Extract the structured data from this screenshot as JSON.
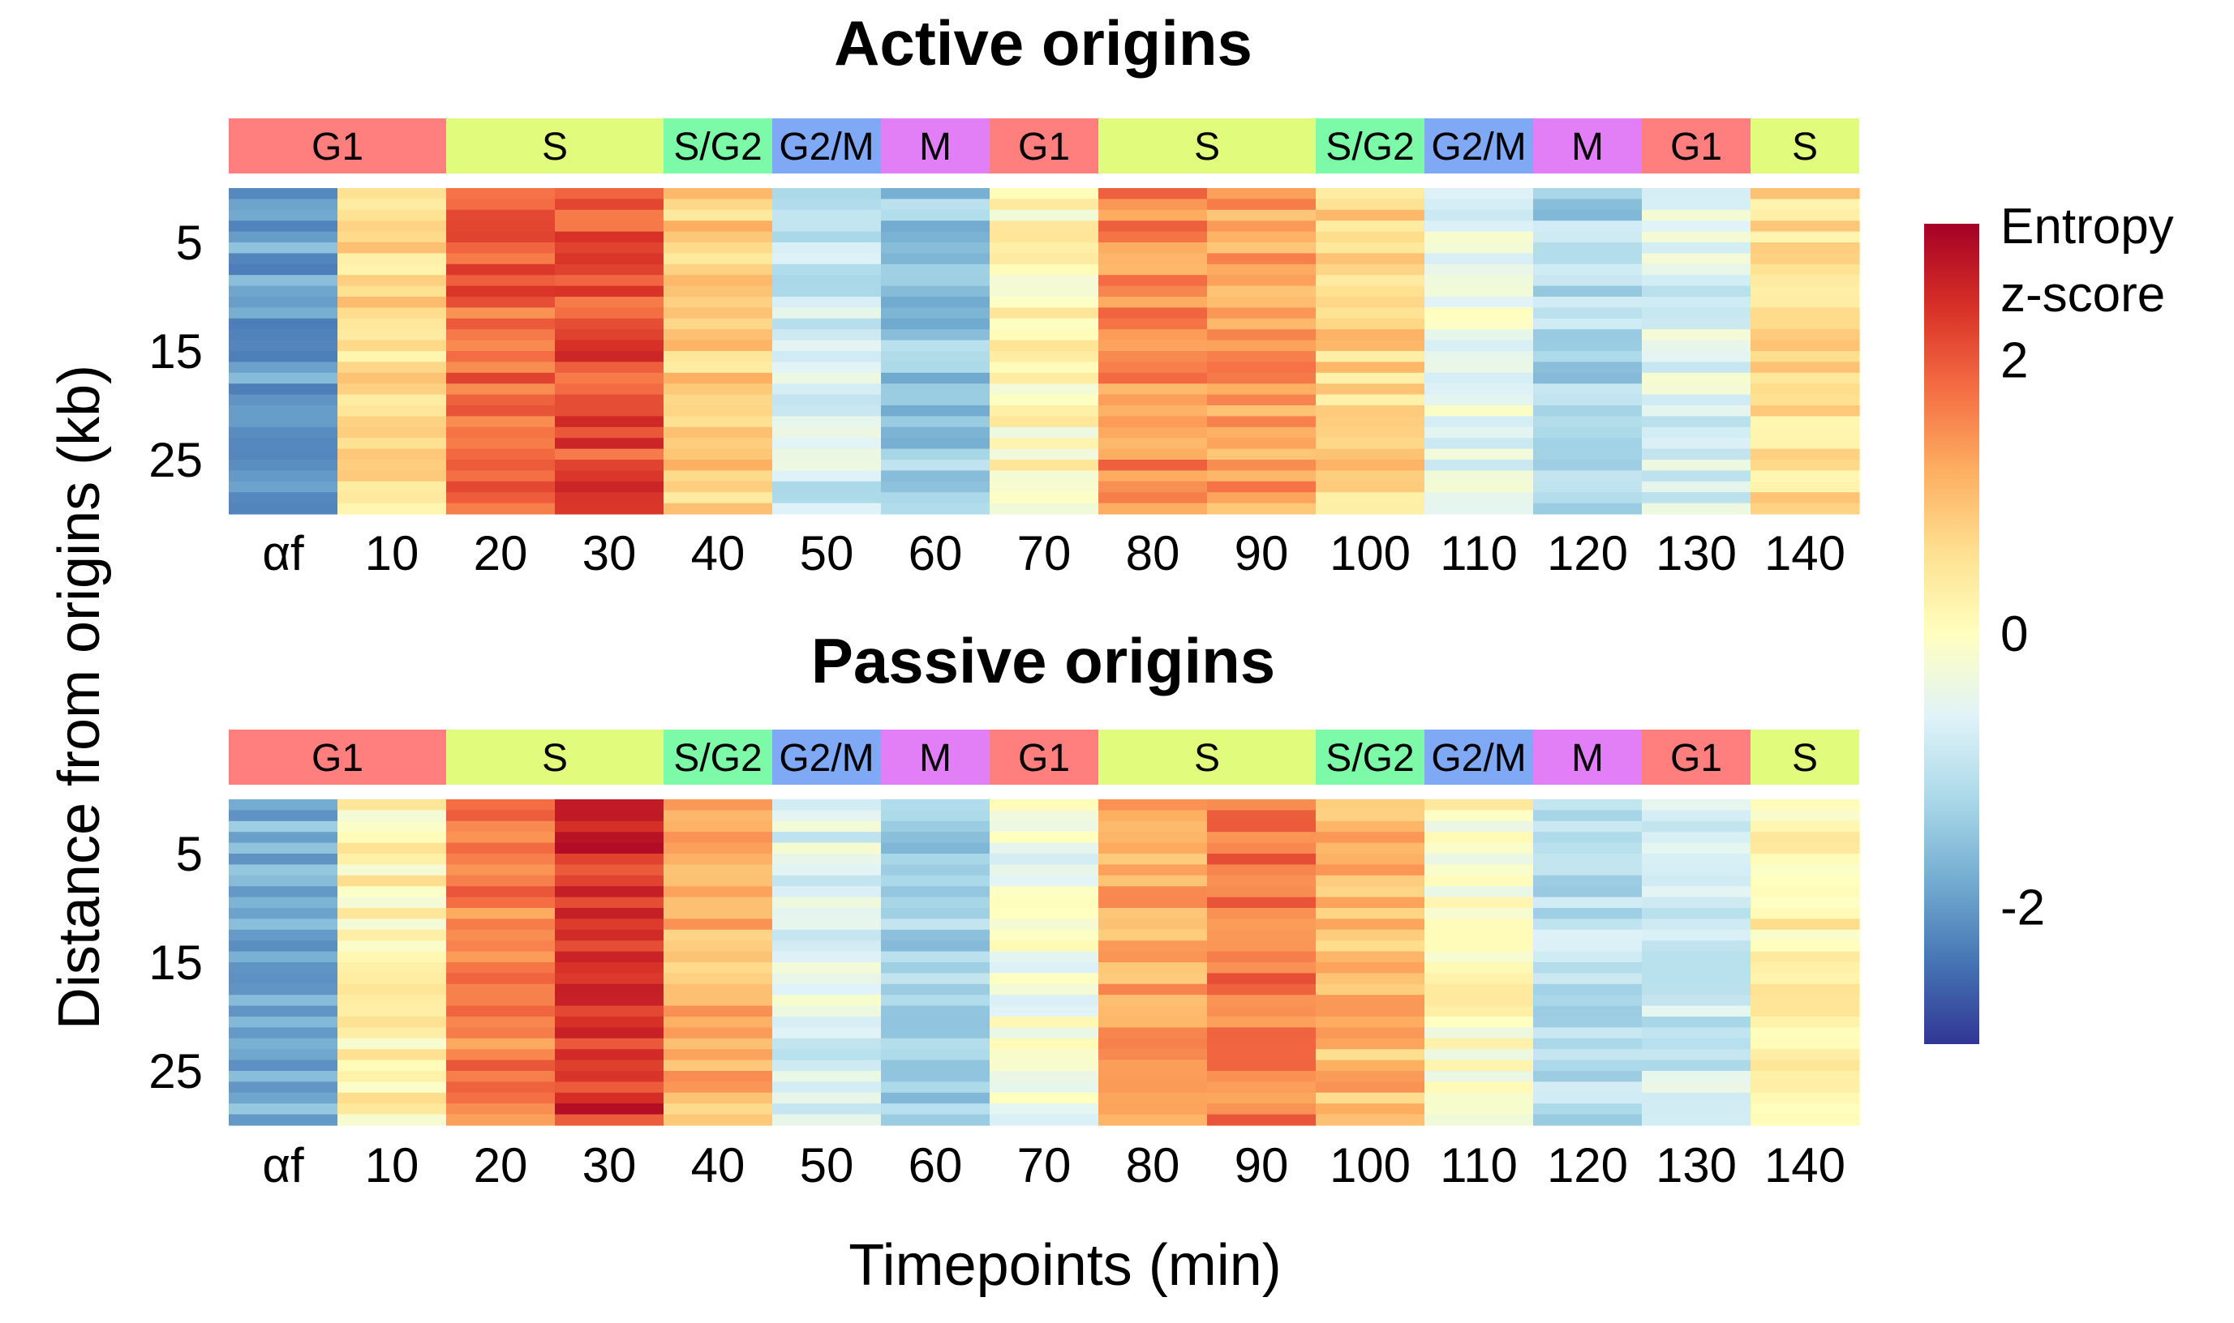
{
  "chart_data": {
    "type": "heatmap",
    "xlabel": "Timepoints (min)",
    "ylabel": "Distance from origins (kb)",
    "columns": [
      "αf",
      "10",
      "20",
      "30",
      "40",
      "50",
      "60",
      "70",
      "80",
      "90",
      "100",
      "110",
      "120",
      "130",
      "140"
    ],
    "phases": [
      {
        "label": "G1",
        "span": 2,
        "color": "#ff7f7f"
      },
      {
        "label": "S",
        "span": 2,
        "color": "#e1fc7c"
      },
      {
        "label": "S/G2",
        "span": 1,
        "color": "#7dfaa8"
      },
      {
        "label": "G2/M",
        "span": 1,
        "color": "#7fa8f5"
      },
      {
        "label": "M",
        "span": 1,
        "color": "#e27ef6"
      },
      {
        "label": "G1",
        "span": 1,
        "color": "#ff7f7f"
      },
      {
        "label": "S",
        "span": 2,
        "color": "#e1fc7c"
      },
      {
        "label": "S/G2",
        "span": 1,
        "color": "#7dfaa8"
      },
      {
        "label": "G2/M",
        "span": 1,
        "color": "#7fa8f5"
      },
      {
        "label": "M",
        "span": 1,
        "color": "#e27ef6"
      },
      {
        "label": "G1",
        "span": 1,
        "color": "#ff7f7f"
      },
      {
        "label": "S",
        "span": 1,
        "color": "#e1fc7c"
      }
    ],
    "y_range_kb": [
      0,
      30
    ],
    "y_ticks": [
      5,
      15,
      25
    ],
    "rows_per_panel": 30,
    "colorbar": {
      "title_line1": "Entropy",
      "title_line2": "z-score",
      "range": [
        -3,
        3
      ],
      "ticks": [
        {
          "value": 2,
          "label": "2"
        },
        {
          "value": 0,
          "label": "0"
        },
        {
          "value": -2,
          "label": "-2"
        }
      ],
      "palette": "RdYlBu (reversed)"
    },
    "panels": [
      {
        "title": "Active origins",
        "column_mean_zscore": [
          -1.9,
          0.6,
          1.9,
          2.1,
          0.8,
          -0.8,
          -1.4,
          0.1,
          1.5,
          1.3,
          0.7,
          -0.4,
          -1.2,
          -0.6,
          0.6
        ]
      },
      {
        "title": "Passive origins",
        "column_mean_zscore": [
          -1.8,
          0.2,
          1.6,
          2.4,
          1.1,
          -0.6,
          -1.3,
          -0.3,
          1.2,
          1.7,
          1.0,
          0.0,
          -1.0,
          -0.8,
          0.2
        ]
      }
    ]
  }
}
